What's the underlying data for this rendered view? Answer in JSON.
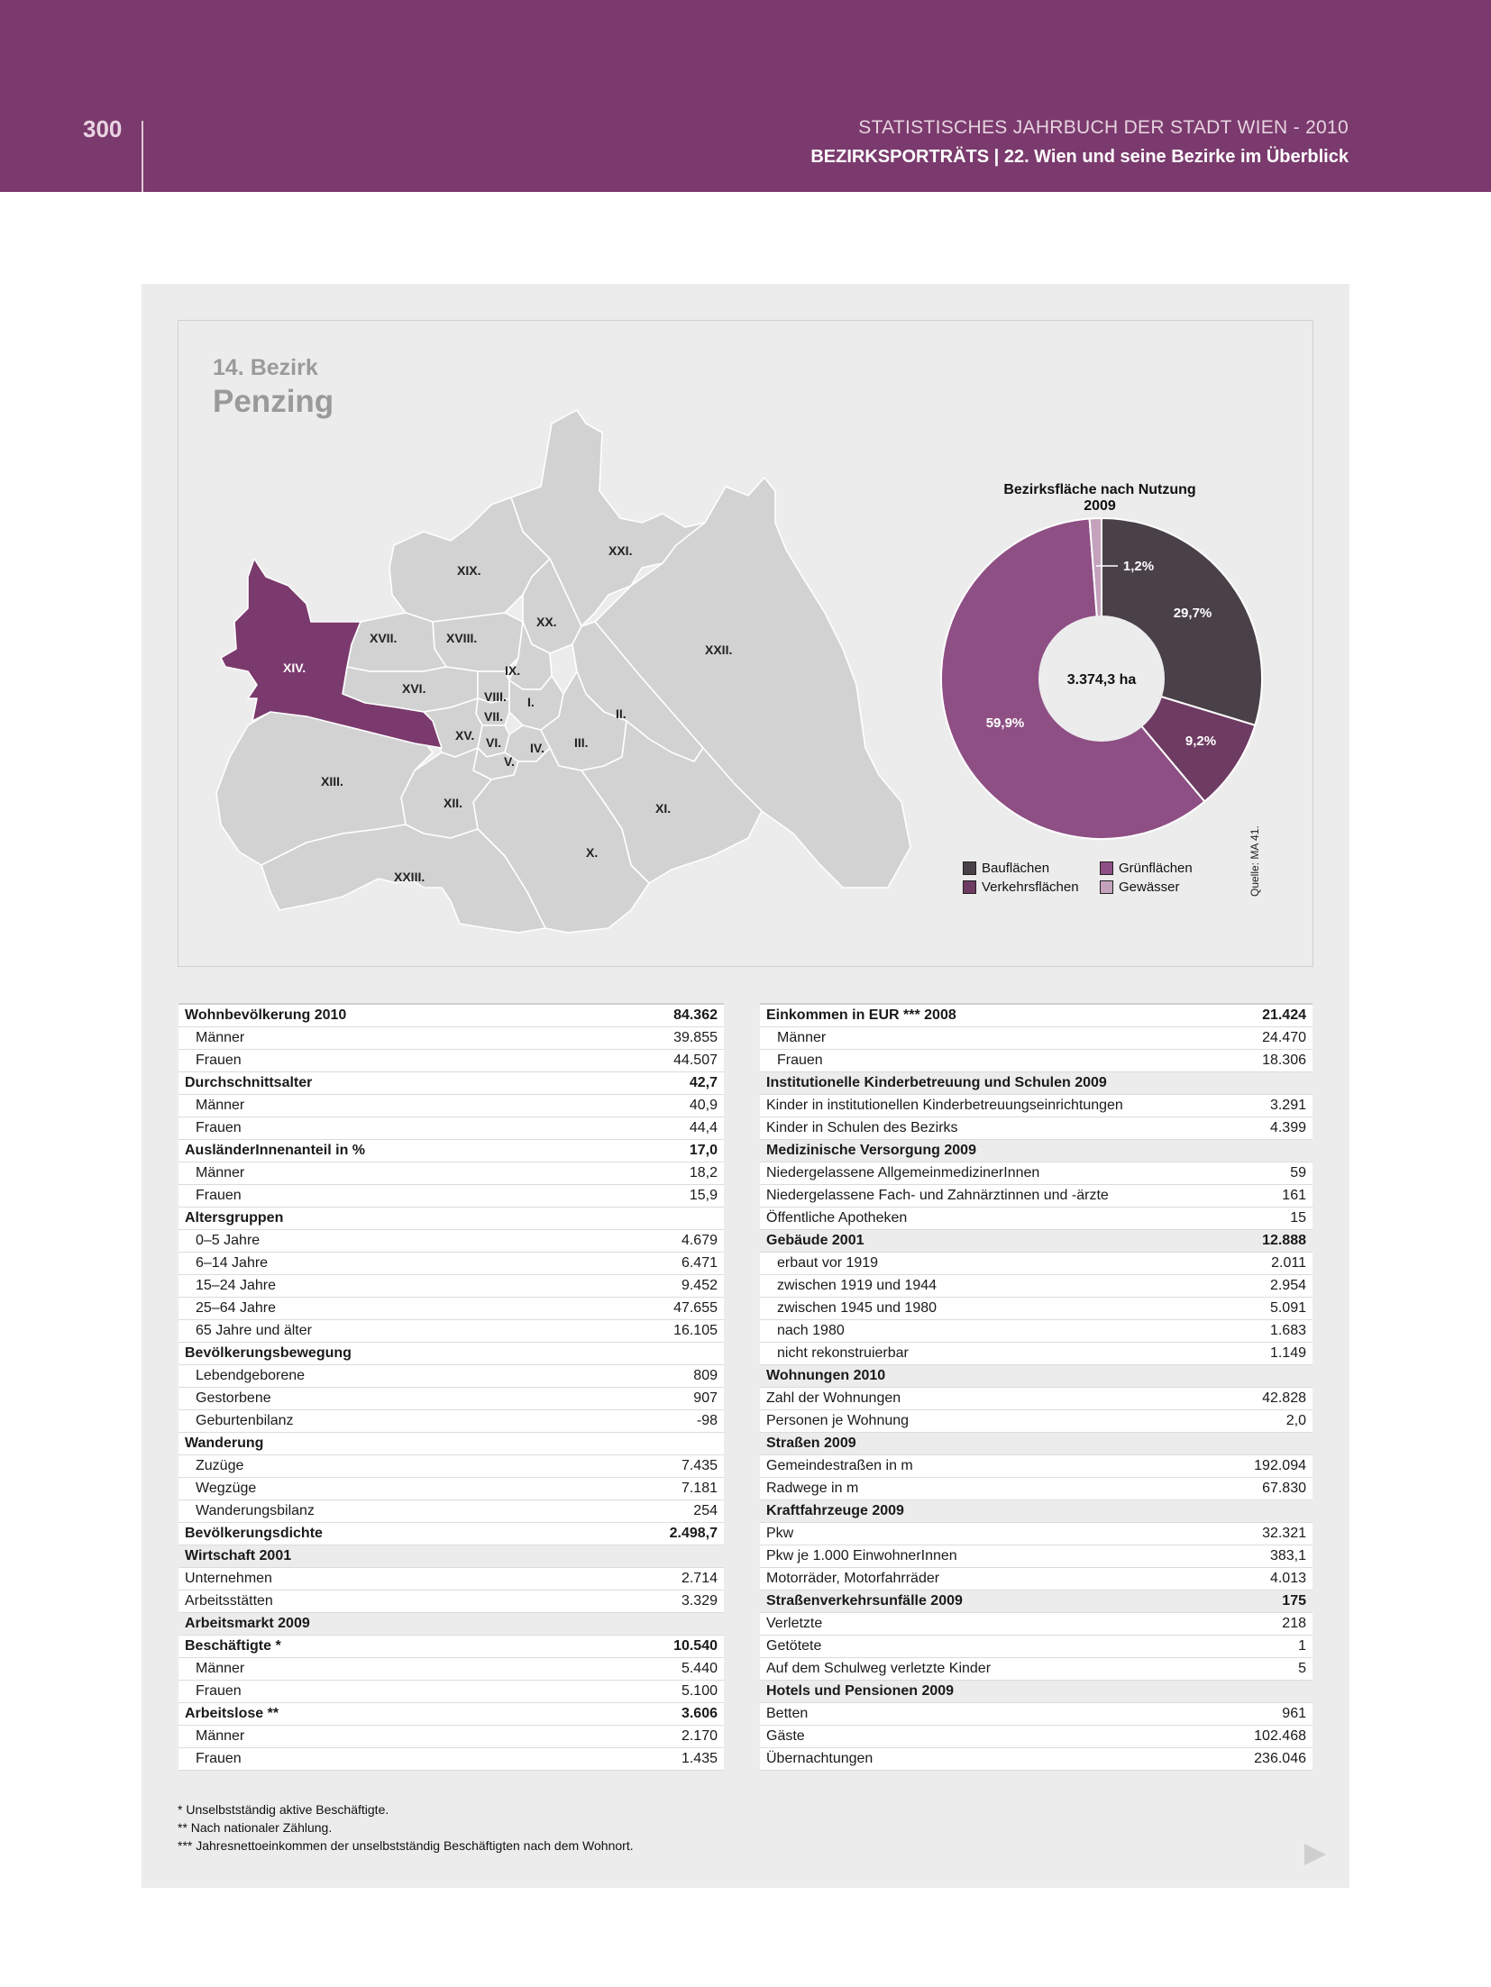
{
  "header": {
    "page_number": "300",
    "title_line1": "STATISTISCHES JAHRBUCH DER STADT WIEN - 2010",
    "title_line2": "BEZIRKSPORTRÄTS | 22. Wien und seine Bezirke im Überblick"
  },
  "district": {
    "number_label": "14. Bezirk",
    "name": "Penzing"
  },
  "map": {
    "highlight_color": "#7b3a6d",
    "base_color": "#d2d2d2",
    "labels": [
      "XXI.",
      "XIX.",
      "XX.",
      "XXII.",
      "XVII.",
      "XVIII.",
      "XIV.",
      "IX.",
      "XVI.",
      "VIII.",
      "I.",
      "VII.",
      "II.",
      "XV.",
      "VI.",
      "IV.",
      "III.",
      "V.",
      "XIII.",
      "XII.",
      "XI.",
      "X.",
      "XXIII."
    ]
  },
  "chart_data": {
    "type": "pie",
    "title": "Bezirksfläche nach Nutzung 2009",
    "center_label": "3.374,3 ha",
    "categories": [
      "Bauflächen",
      "Verkehrsflächen",
      "Grünflächen",
      "Gewässer"
    ],
    "values": [
      29.7,
      9.2,
      59.9,
      1.2
    ],
    "value_labels": [
      "29,7%",
      "9,2%",
      "59,9%",
      "1,2%"
    ],
    "colors": [
      "#4a4148",
      "#6e3b62",
      "#8e4f84",
      "#c4a2bc"
    ],
    "legend_placement": "bottom"
  },
  "source": "Quelle: MA 41.",
  "left_table": [
    {
      "label": "Wohnbevölkerung 2010",
      "value": "84.362",
      "kind": "h"
    },
    {
      "label": "Männer",
      "value": "39.855",
      "kind": "c"
    },
    {
      "label": "Frauen",
      "value": "44.507",
      "kind": "c"
    },
    {
      "label": "Durchschnittsalter",
      "value": "42,7",
      "kind": "h"
    },
    {
      "label": "Männer",
      "value": "40,9",
      "kind": "c"
    },
    {
      "label": "Frauen",
      "value": "44,4",
      "kind": "c"
    },
    {
      "label": "AusländerInnenanteil in %",
      "value": "17,0",
      "kind": "h"
    },
    {
      "label": "Männer",
      "value": "18,2",
      "kind": "c"
    },
    {
      "label": "Frauen",
      "value": "15,9",
      "kind": "c"
    },
    {
      "label": "Altersgruppen",
      "value": "",
      "kind": "h"
    },
    {
      "label": "0–5 Jahre",
      "value": "4.679",
      "kind": "c"
    },
    {
      "label": "6–14 Jahre",
      "value": "6.471",
      "kind": "c"
    },
    {
      "label": "15–24 Jahre",
      "value": "9.452",
      "kind": "c"
    },
    {
      "label": "25–64 Jahre",
      "value": "47.655",
      "kind": "c"
    },
    {
      "label": "65 Jahre und älter",
      "value": "16.105",
      "kind": "c"
    },
    {
      "label": "Bevölkerungsbewegung",
      "value": "",
      "kind": "h"
    },
    {
      "label": "Lebendgeborene",
      "value": "809",
      "kind": "c"
    },
    {
      "label": "Gestorbene",
      "value": "907",
      "kind": "c"
    },
    {
      "label": "Geburtenbilanz",
      "value": "-98",
      "kind": "c"
    },
    {
      "label": "Wanderung",
      "value": "",
      "kind": "h"
    },
    {
      "label": "Zuzüge",
      "value": "7.435",
      "kind": "c"
    },
    {
      "label": "Wegzüge",
      "value": "7.181",
      "kind": "c"
    },
    {
      "label": "Wanderungsbilanz",
      "value": "254",
      "kind": "c"
    },
    {
      "label": "Bevölkerungsdichte",
      "value": "2.498,7",
      "kind": "h"
    },
    {
      "label": "Wirtschaft 2001",
      "value": "",
      "kind": "s"
    },
    {
      "label": "Unternehmen",
      "value": "2.714",
      "kind": "r"
    },
    {
      "label": "Arbeitsstätten",
      "value": "3.329",
      "kind": "r"
    },
    {
      "label": "Arbeitsmarkt 2009",
      "value": "",
      "kind": "s"
    },
    {
      "label": "Beschäftigte *",
      "value": "10.540",
      "kind": "h"
    },
    {
      "label": "Männer",
      "value": "5.440",
      "kind": "c"
    },
    {
      "label": "Frauen",
      "value": "5.100",
      "kind": "c"
    },
    {
      "label": "Arbeitslose **",
      "value": "3.606",
      "kind": "h"
    },
    {
      "label": "Männer",
      "value": "2.170",
      "kind": "c"
    },
    {
      "label": "Frauen",
      "value": "1.435",
      "kind": "c"
    }
  ],
  "right_table": [
    {
      "label": "Einkommen in EUR *** 2008",
      "value": "21.424",
      "kind": "h"
    },
    {
      "label": "Männer",
      "value": "24.470",
      "kind": "c"
    },
    {
      "label": "Frauen",
      "value": "18.306",
      "kind": "c"
    },
    {
      "label": "Institutionelle Kinderbetreuung und Schulen 2009",
      "value": "",
      "kind": "s"
    },
    {
      "label": "Kinder in institutionellen Kinderbetreuungseinrichtungen",
      "value": "3.291",
      "kind": "r"
    },
    {
      "label": "Kinder in Schulen des Bezirks",
      "value": "4.399",
      "kind": "r"
    },
    {
      "label": "Medizinische Versorgung 2009",
      "value": "",
      "kind": "s"
    },
    {
      "label": "Niedergelassene AllgemeinmedizinerInnen",
      "value": "59",
      "kind": "r"
    },
    {
      "label": "Niedergelassene Fach- und Zahnärztinnen und -ärzte",
      "value": "161",
      "kind": "r"
    },
    {
      "label": "Öffentliche Apotheken",
      "value": "15",
      "kind": "r"
    },
    {
      "label": "Gebäude 2001",
      "value": "12.888",
      "kind": "s"
    },
    {
      "label": "erbaut vor 1919",
      "value": "2.011",
      "kind": "c"
    },
    {
      "label": "zwischen 1919 und 1944",
      "value": "2.954",
      "kind": "c"
    },
    {
      "label": "zwischen 1945 und 1980",
      "value": "5.091",
      "kind": "c"
    },
    {
      "label": "nach 1980",
      "value": "1.683",
      "kind": "c"
    },
    {
      "label": "nicht rekonstruierbar",
      "value": "1.149",
      "kind": "c"
    },
    {
      "label": "Wohnungen 2010",
      "value": "",
      "kind": "s"
    },
    {
      "label": "Zahl der Wohnungen",
      "value": "42.828",
      "kind": "r"
    },
    {
      "label": "Personen je Wohnung",
      "value": "2,0",
      "kind": "r"
    },
    {
      "label": "Straßen 2009",
      "value": "",
      "kind": "s"
    },
    {
      "label": "Gemeindestraßen in m",
      "value": "192.094",
      "kind": "r"
    },
    {
      "label": "Radwege in m",
      "value": "67.830",
      "kind": "r"
    },
    {
      "label": "Kraftfahrzeuge 2009",
      "value": "",
      "kind": "s"
    },
    {
      "label": "Pkw",
      "value": "32.321",
      "kind": "r"
    },
    {
      "label": "Pkw je 1.000 EinwohnerInnen",
      "value": "383,1",
      "kind": "r"
    },
    {
      "label": "Motorräder, Motorfahrräder",
      "value": "4.013",
      "kind": "r"
    },
    {
      "label": "Straßenverkehrsunfälle 2009",
      "value": "175",
      "kind": "s"
    },
    {
      "label": "Verletzte",
      "value": "218",
      "kind": "r"
    },
    {
      "label": "Getötete",
      "value": "1",
      "kind": "r"
    },
    {
      "label": "Auf dem Schulweg verletzte Kinder",
      "value": "5",
      "kind": "r"
    },
    {
      "label": "Hotels und Pensionen 2009",
      "value": "",
      "kind": "s"
    },
    {
      "label": "Betten",
      "value": "961",
      "kind": "r"
    },
    {
      "label": "Gäste",
      "value": "102.468",
      "kind": "r"
    },
    {
      "label": "Übernachtungen",
      "value": "236.046",
      "kind": "r"
    }
  ],
  "footnotes": [
    "* Unselbstständig aktive Beschäftigte.",
    "** Nach nationaler Zählung.",
    "*** Jahresnettoeinkommen der unselbstständig Beschäftigten nach dem Wohnort."
  ]
}
